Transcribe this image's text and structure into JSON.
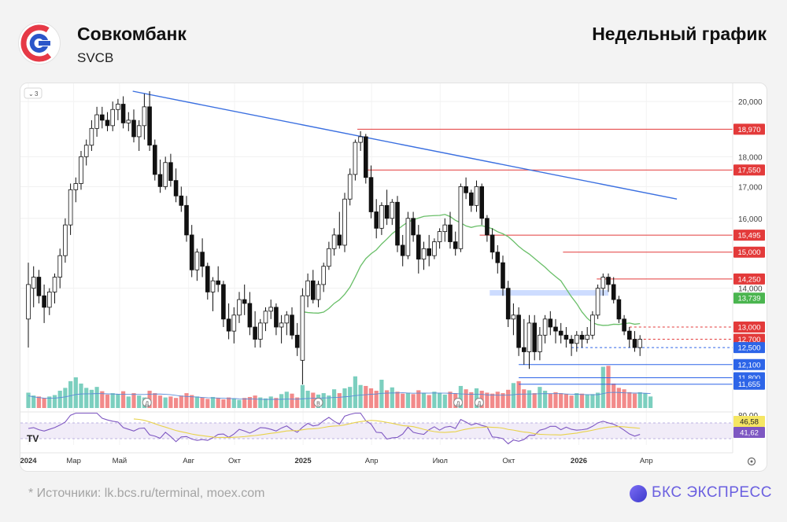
{
  "header": {
    "bank_name": "Совкомбанк",
    "ticker": "SVCB",
    "chart_kind": "Недельный график"
  },
  "footer": {
    "sources": "*  Источники: lk.bcs.ru/terminal, moex.com",
    "brand": "БКС ЭКСПРЕСС"
  },
  "colors": {
    "up_candle": "#ffffff",
    "down_candle": "#111111",
    "volume_up": "#7ccfbf",
    "volume_down": "#f28a8a",
    "ma_line": "#6abf69",
    "trend_line": "#3a6fe0",
    "resistance": "#e33a3a",
    "support_blue": "#2d65e8",
    "rsi_line": "#7e57c2",
    "rsi_ma": "#e8d24a",
    "logo_red": "#e63946",
    "logo_blue": "#2b56c9"
  },
  "toolbar": {
    "collapse_label": "3"
  },
  "chart_data": {
    "type": "candlestick",
    "timeframe": "weekly",
    "price_axis": {
      "scale": "log",
      "ticks": [
        "20,000",
        "18,000",
        "17,000",
        "16,000",
        "14,000"
      ]
    },
    "time_axis": {
      "ticks": [
        {
          "label": "2024",
          "t": 0.0,
          "bold": true
        },
        {
          "label": "Мар",
          "t": 8.6
        },
        {
          "label": "Май",
          "t": 17.3
        },
        {
          "label": "Авг",
          "t": 30.4
        },
        {
          "label": "Окт",
          "t": 39.1
        },
        {
          "label": "2025",
          "t": 52.1,
          "bold": true
        },
        {
          "label": "Апр",
          "t": 65.1
        },
        {
          "label": "Июл",
          "t": 78.1
        },
        {
          "label": "Окт",
          "t": 91.1
        },
        {
          "label": "2026",
          "t": 104.4,
          "bold": true
        },
        {
          "label": "Апр",
          "t": 117.2
        }
      ]
    },
    "levels": [
      {
        "label": "18,970",
        "price": 18970,
        "color": "#e33a3a",
        "style": "solid",
        "from_t": 62.4
      },
      {
        "label": "17,550",
        "price": 17550,
        "color": "#e33a3a",
        "style": "solid",
        "from_t": 64.0
      },
      {
        "label": "15,495",
        "price": 15495,
        "color": "#e33a3a",
        "style": "solid",
        "from_t": 85.6
      },
      {
        "label": "15,000",
        "price": 15000,
        "color": "#e33a3a",
        "style": "solid",
        "from_t": 101.4
      },
      {
        "label": "14,250",
        "price": 14250,
        "color": "#e33a3a",
        "style": "solid",
        "from_t": 107.8
      },
      {
        "label": "13,739",
        "price": 13739,
        "color": "#4ab54f",
        "style": "none",
        "from_t": 120.0
      },
      {
        "label": "13,000",
        "price": 13000,
        "color": "#e33a3a",
        "style": "dashed",
        "from_t": 114.0
      },
      {
        "label": "12,700",
        "price": 12700,
        "color": "#e33a3a",
        "style": "dashed",
        "from_t": 114.0
      },
      {
        "label": "12,500",
        "price": 12500,
        "color": "#2d65e8",
        "style": "dashed",
        "from_t": 103.0
      },
      {
        "label": "12,100",
        "price": 12100,
        "color": "#2d65e8",
        "style": "solid",
        "from_t": 93.0
      },
      {
        "label": "11,800",
        "price": 11800,
        "color": "#2d65e8",
        "style": "solid",
        "from_t": 93.0
      },
      {
        "label": "11,655",
        "price": 11655,
        "color": "#2d65e8",
        "style": "solid",
        "from_t": 93.0
      }
    ],
    "trendline": {
      "from": {
        "t": 19.8,
        "price": 20400
      },
      "to": {
        "t": 123.0,
        "price": 16600
      }
    },
    "support_zone": {
      "from_t": 87.5,
      "to_t": 110.0,
      "low": 13550,
      "high": 13700
    },
    "candles": [
      [
        13200,
        14700,
        12500,
        14100
      ],
      [
        14000,
        14600,
        13500,
        14300
      ],
      [
        14300,
        14500,
        13600,
        13800
      ],
      [
        13800,
        14100,
        13100,
        13500
      ],
      [
        13500,
        14000,
        13300,
        13900
      ],
      [
        13900,
        14400,
        13600,
        14300
      ],
      [
        14300,
        15100,
        14000,
        14900
      ],
      [
        14900,
        16000,
        14700,
        15800
      ],
      [
        15800,
        17100,
        15500,
        16900
      ],
      [
        16900,
        17300,
        16500,
        17100
      ],
      [
        17100,
        18200,
        16900,
        18000
      ],
      [
        18000,
        18600,
        17700,
        18400
      ],
      [
        18400,
        19300,
        18200,
        19000
      ],
      [
        19000,
        19800,
        18700,
        19500
      ],
      [
        19500,
        19800,
        19000,
        19300
      ],
      [
        19300,
        19600,
        18900,
        19100
      ],
      [
        19100,
        20000,
        18900,
        19700
      ],
      [
        19700,
        20100,
        19300,
        19900
      ],
      [
        19900,
        20200,
        19000,
        19200
      ],
      [
        19200,
        19600,
        18900,
        19300
      ],
      [
        19300,
        19700,
        18500,
        18700
      ],
      [
        18700,
        19300,
        18200,
        19100
      ],
      [
        19100,
        20300,
        18600,
        19800
      ],
      [
        19800,
        20400,
        18200,
        18400
      ],
      [
        18400,
        18600,
        17200,
        17400
      ],
      [
        17400,
        17900,
        16800,
        17000
      ],
      [
        17000,
        18000,
        16900,
        17800
      ],
      [
        17800,
        18100,
        17000,
        17200
      ],
      [
        17200,
        17600,
        16500,
        16700
      ],
      [
        16700,
        17000,
        16200,
        16400
      ],
      [
        16400,
        16700,
        15300,
        15500
      ],
      [
        15500,
        15800,
        14300,
        14500
      ],
      [
        14500,
        15100,
        14200,
        15000
      ],
      [
        15000,
        15400,
        14300,
        14600
      ],
      [
        14600,
        14700,
        13700,
        13900
      ],
      [
        13900,
        14300,
        13400,
        14200
      ],
      [
        14200,
        14600,
        13900,
        14100
      ],
      [
        14100,
        14200,
        13000,
        13200
      ],
      [
        13200,
        13600,
        12700,
        12900
      ],
      [
        12900,
        13500,
        12600,
        13300
      ],
      [
        13300,
        13900,
        13100,
        13700
      ],
      [
        13700,
        14100,
        13300,
        13600
      ],
      [
        13600,
        13900,
        12800,
        13000
      ],
      [
        13000,
        13400,
        12500,
        12700
      ],
      [
        12700,
        13200,
        12500,
        13100
      ],
      [
        13100,
        13500,
        12900,
        13400
      ],
      [
        13400,
        13700,
        13200,
        13500
      ],
      [
        13500,
        13600,
        12800,
        13000
      ],
      [
        13000,
        13300,
        12600,
        13100
      ],
      [
        13100,
        13400,
        12800,
        13300
      ],
      [
        13300,
        13500,
        12700,
        12800
      ],
      [
        12800,
        13100,
        12300,
        12500
      ],
      [
        12200,
        14000,
        11650,
        13800
      ],
      [
        13800,
        14400,
        13500,
        14200
      ],
      [
        14200,
        14500,
        13600,
        13700
      ],
      [
        13700,
        14200,
        13500,
        14100
      ],
      [
        14100,
        14700,
        13900,
        14600
      ],
      [
        14600,
        15300,
        14500,
        15100
      ],
      [
        15100,
        15700,
        14900,
        15500
      ],
      [
        15500,
        16200,
        15100,
        15200
      ],
      [
        15200,
        16800,
        15000,
        16600
      ],
      [
        16600,
        17600,
        16400,
        17400
      ],
      [
        17400,
        18600,
        17200,
        18500
      ],
      [
        18500,
        18900,
        18200,
        18700
      ],
      [
        18700,
        18800,
        17100,
        17300
      ],
      [
        17300,
        17700,
        16000,
        16200
      ],
      [
        16200,
        16600,
        15400,
        15700
      ],
      [
        15700,
        16500,
        15500,
        16400
      ],
      [
        16400,
        16900,
        15800,
        16000
      ],
      [
        16000,
        16600,
        15800,
        16500
      ],
      [
        16500,
        16700,
        15000,
        15200
      ],
      [
        15200,
        15500,
        14600,
        14900
      ],
      [
        14900,
        16200,
        14800,
        16000
      ],
      [
        16000,
        16200,
        15300,
        15500
      ],
      [
        15500,
        15800,
        14400,
        14800
      ],
      [
        14800,
        15300,
        14500,
        15100
      ],
      [
        15100,
        15500,
        14600,
        14900
      ],
      [
        14900,
        15400,
        14800,
        15300
      ],
      [
        15300,
        15700,
        15100,
        15600
      ],
      [
        15600,
        16000,
        15300,
        15800
      ],
      [
        15800,
        16200,
        15100,
        15300
      ],
      [
        15300,
        15600,
        14900,
        15100
      ],
      [
        15100,
        17100,
        15000,
        17000
      ],
      [
        17000,
        17300,
        16600,
        16800
      ],
      [
        16800,
        16900,
        16200,
        16400
      ],
      [
        16400,
        17200,
        16200,
        17000
      ],
      [
        17000,
        17100,
        15800,
        16000
      ],
      [
        16000,
        16100,
        15300,
        15500
      ],
      [
        15500,
        15700,
        14800,
        15000
      ],
      [
        15000,
        15200,
        14400,
        14700
      ],
      [
        14700,
        14900,
        13800,
        14000
      ],
      [
        14000,
        14200,
        13000,
        13200
      ],
      [
        13200,
        13600,
        12800,
        13300
      ],
      [
        13300,
        13500,
        12300,
        12500
      ],
      [
        12500,
        13200,
        12100,
        12400
      ],
      [
        12400,
        13300,
        12000,
        13100
      ],
      [
        13100,
        13300,
        12200,
        12400
      ],
      [
        12400,
        13000,
        12200,
        12800
      ],
      [
        12800,
        13300,
        12600,
        13200
      ],
      [
        13200,
        13400,
        12800,
        13000
      ],
      [
        13000,
        13200,
        12600,
        12900
      ],
      [
        12900,
        13100,
        12600,
        12800
      ],
      [
        12800,
        13000,
        12500,
        12700
      ],
      [
        12700,
        12800,
        12300,
        12600
      ],
      [
        12600,
        12900,
        12400,
        12800
      ],
      [
        12800,
        12900,
        12500,
        12700
      ],
      [
        12700,
        13000,
        12600,
        12800
      ],
      [
        12800,
        13400,
        12700,
        13300
      ],
      [
        13300,
        14100,
        13200,
        14000
      ],
      [
        14000,
        14400,
        13800,
        14300
      ],
      [
        14300,
        14400,
        13900,
        14100
      ],
      [
        14100,
        14300,
        13600,
        13700
      ],
      [
        13700,
        13800,
        13100,
        13200
      ],
      [
        13200,
        13300,
        12800,
        12900
      ],
      [
        12900,
        13000,
        12500,
        12700
      ],
      [
        12700,
        12900,
        12400,
        12500
      ],
      [
        12500,
        12800,
        12300,
        12700
      ]
    ],
    "volume": [
      3.2,
      2.6,
      2.4,
      2.1,
      2.4,
      2.7,
      3.6,
      4.2,
      5.6,
      6.4,
      5.1,
      4.2,
      3.8,
      4.4,
      3.5,
      2.8,
      3.1,
      2.9,
      3.5,
      2.4,
      3.1,
      2.6,
      2.2,
      3.6,
      3.1,
      2.6,
      2.2,
      2.4,
      2.1,
      2.6,
      3.1,
      2.7,
      2.4,
      2.2,
      1.9,
      2.3,
      2.1,
      1.8,
      2.2,
      2.0,
      1.7,
      2.1,
      2.3,
      2.6,
      2.2,
      2.0,
      2.4,
      2.1,
      2.9,
      3.4,
      3.0,
      2.2,
      4.8,
      3.6,
      3.2,
      2.8,
      3.1,
      2.6,
      3.9,
      3.1,
      4.1,
      4.4,
      6.6,
      4.8,
      4.6,
      4.1,
      3.6,
      5.9,
      3.7,
      4.3,
      3.4,
      3.0,
      3.2,
      2.9,
      3.7,
      3.1,
      2.7,
      3.4,
      3.2,
      2.8,
      3.4,
      3.1,
      4.6,
      3.9,
      3.3,
      4.1,
      3.6,
      3.2,
      3.0,
      3.4,
      3.1,
      3.8,
      5.2,
      5.6,
      3.9,
      3.7,
      3.1,
      4.4,
      3.6,
      3.0,
      3.3,
      3.1,
      2.9,
      2.6,
      3.1,
      3.0,
      2.8,
      2.9,
      3.2,
      8.6,
      8.8,
      5.1,
      4.2,
      3.9,
      3.3,
      3.0,
      3.3,
      3.1,
      2.4
    ],
    "volume_markers": [
      {
        "label": "Д",
        "t": 22.5
      },
      {
        "label": "В",
        "t": 55.0
      },
      {
        "label": "Д",
        "t": 81.5
      },
      {
        "label": "Д",
        "t": 85.5
      }
    ],
    "rsi": {
      "ticks": [
        {
          "label": "80,00"
        }
      ],
      "values_label": [
        "46,58",
        "41,62"
      ],
      "current_ma": 46.58,
      "current": 41.62
    }
  }
}
